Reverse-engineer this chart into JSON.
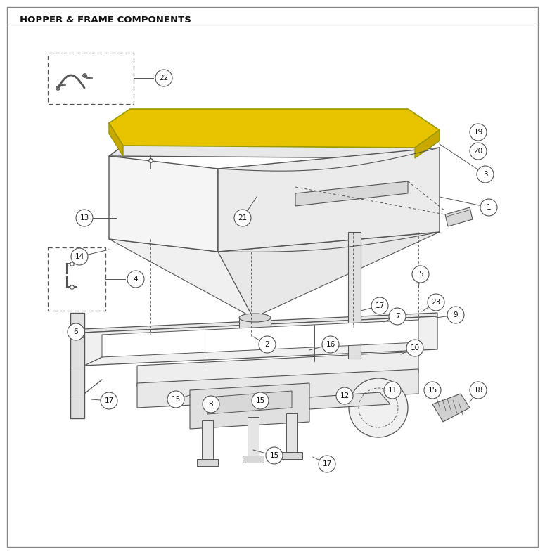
{
  "title": "HOPPER & FRAME COMPONENTS",
  "bg_color": "#ffffff",
  "lc": "#555555",
  "lc_dark": "#333333",
  "yellow": "#E8C400",
  "yellow_side": "#C8A800",
  "grey_light": "#f2f2f2",
  "grey_mid": "#e0e0e0",
  "grey_dark": "#c8c8c8",
  "fig_w": 7.75,
  "fig_h": 7.88,
  "dpi": 100
}
